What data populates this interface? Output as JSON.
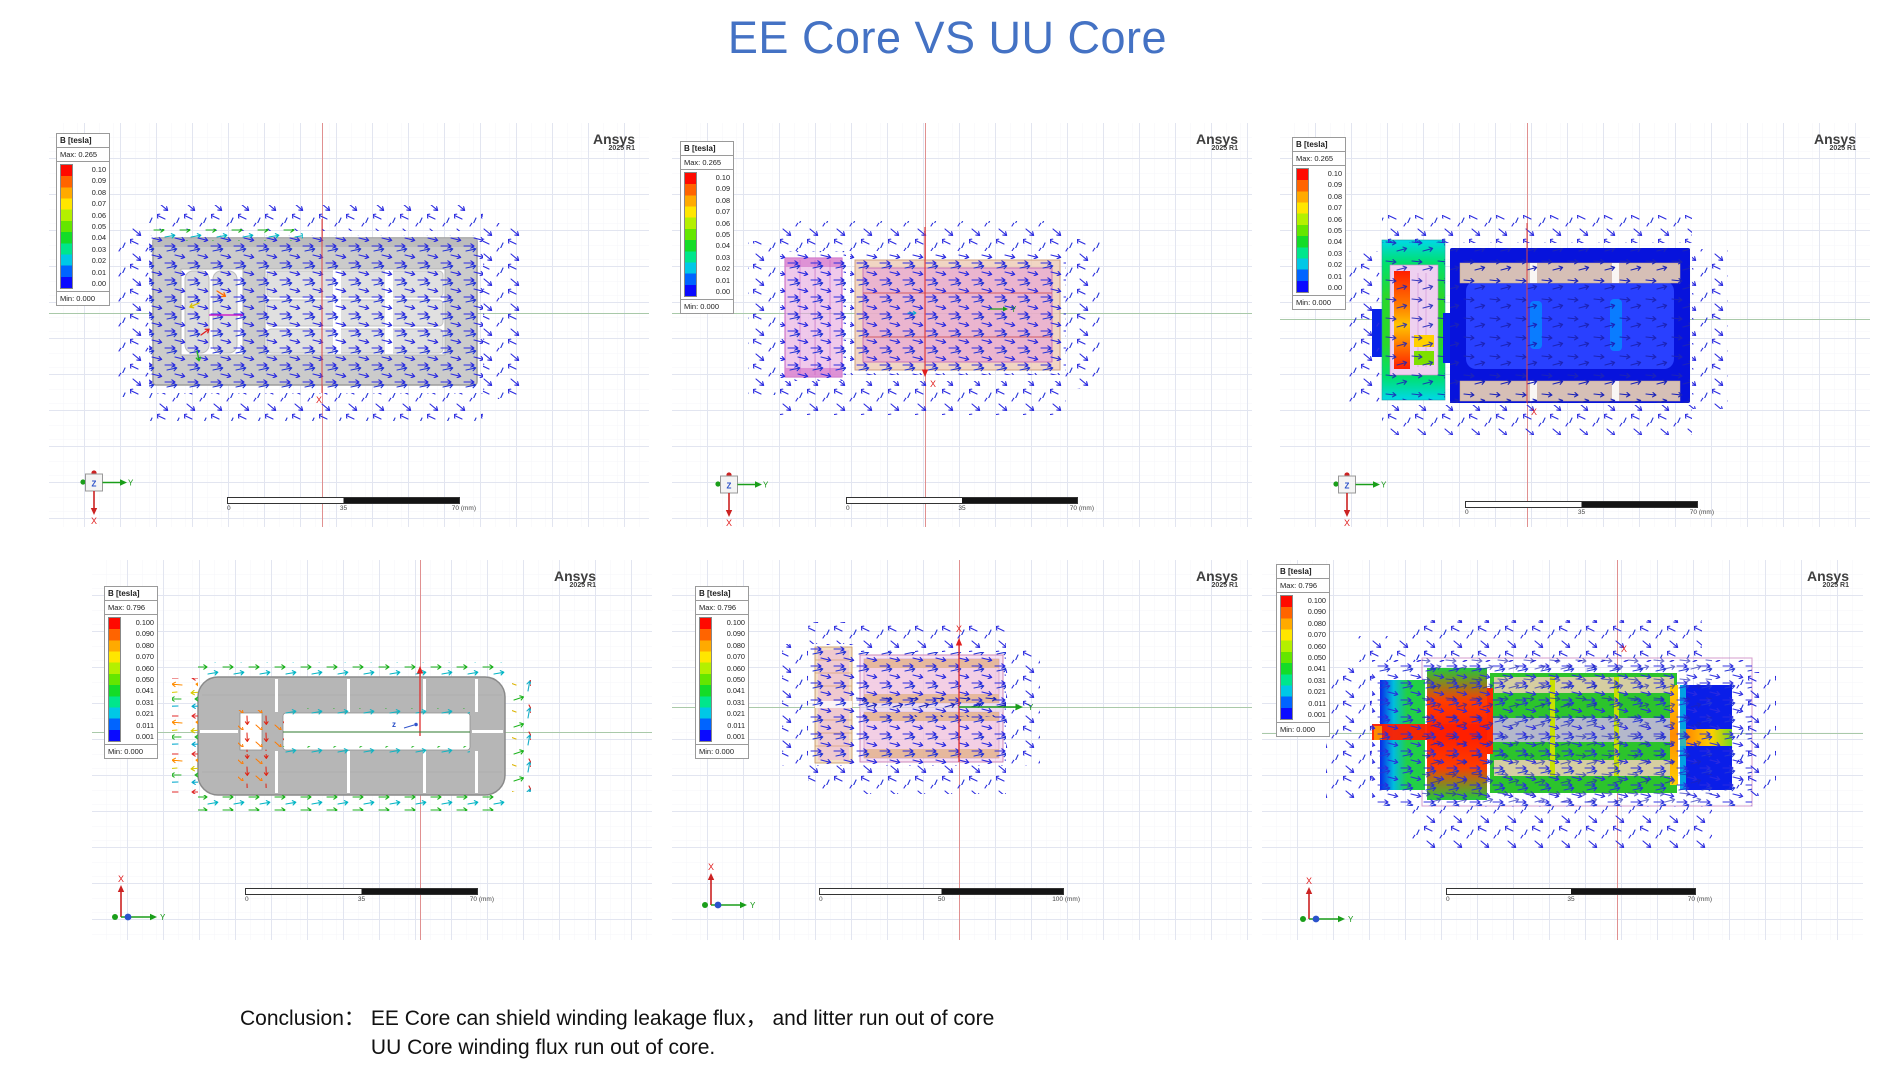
{
  "title": "EE Core VS UU Core",
  "branding": {
    "app": "Ansys",
    "version": "2025 R1"
  },
  "axis_labels": {
    "x": "X",
    "y": "Y",
    "z": "Z",
    "z_lower": "z"
  },
  "legends": {
    "low": {
      "title": "B [tesla]",
      "max": "Max: 0.265",
      "min": "Min: 0.000",
      "ticks": [
        "0.10",
        "0.09",
        "0.08",
        "0.07",
        "0.06",
        "0.05",
        "0.04",
        "0.03",
        "0.02",
        "0.01",
        "0.00"
      ]
    },
    "high": {
      "title": "B [tesla]",
      "max": "Max: 0.796",
      "min": "Min: 0.000",
      "ticks": [
        "0.100",
        "0.090",
        "0.080",
        "0.070",
        "0.060",
        "0.050",
        "0.041",
        "0.031",
        "0.021",
        "0.011",
        "0.001"
      ]
    }
  },
  "ramp_colors": [
    "#ff0a00",
    "#ff6400",
    "#ffaa00",
    "#ffe600",
    "#b4f000",
    "#64e600",
    "#14dc28",
    "#00e68c",
    "#00c8e6",
    "#0064ff",
    "#0a0aff"
  ],
  "scales": {
    "mm70": {
      "start": "0",
      "mid": "35",
      "end": "70 (mm)"
    },
    "mm100": {
      "start": "0",
      "mid": "50",
      "end": "100 (mm)"
    }
  },
  "panels": [
    {
      "name": "ee-core-flux-vectors",
      "legend": "low",
      "scale": "mm70"
    },
    {
      "name": "ee-windings-leakage-vectors",
      "legend": "low",
      "scale": "mm70"
    },
    {
      "name": "ee-core-field-magnitude",
      "legend": "low",
      "scale": "mm70"
    },
    {
      "name": "uu-core-geometry-vectors",
      "legend": "high",
      "scale": "mm70"
    },
    {
      "name": "uu-windings-leakage-vectors",
      "legend": "high",
      "scale": "mm100"
    },
    {
      "name": "uu-core-field-magnitude",
      "legend": "high",
      "scale": "mm70"
    }
  ],
  "conclusion": {
    "label": "Conclusion：",
    "line1": "EE Core can shield winding leakage flux， and litter run out of core",
    "line2": "UU Core winding flux run out of core."
  },
  "colors": {
    "title_blue": "#4472c4",
    "ansys_text": "#3f3f3f",
    "centerline_red": "#e09090",
    "centerline_green": "#a9c9a9",
    "flux_arrow_blue": "#2a2ae0"
  }
}
